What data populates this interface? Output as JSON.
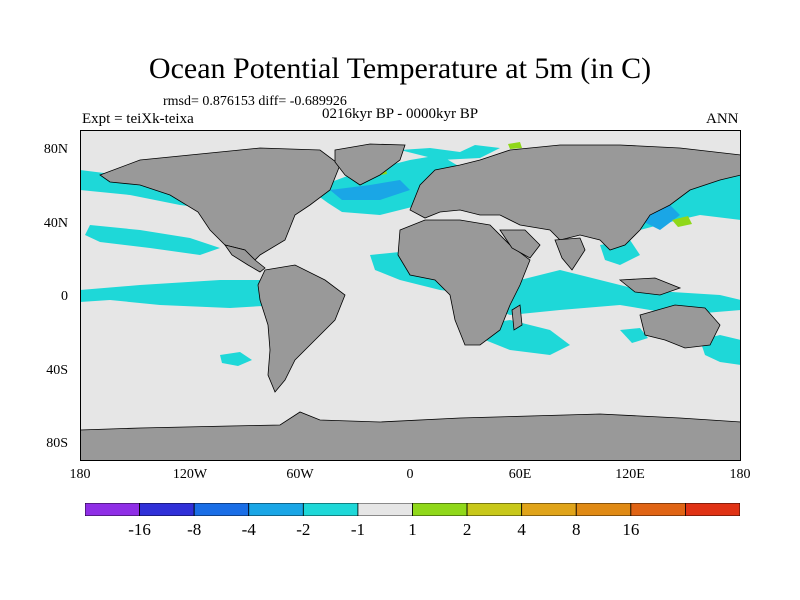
{
  "figure": {
    "title": "Ocean Potential Temperature at 5m (in C)",
    "stats": "rmsd= 0.876153 diff= -0.689926",
    "experiment": "Expt = teiXk-teixa",
    "period": "0216kyr BP - 0000kyr BP",
    "season": "ANN"
  },
  "map": {
    "projection": "cylindrical equidistant",
    "lon_range": [
      -180,
      180
    ],
    "lat_range": [
      -90,
      90
    ],
    "land_color": "#999999",
    "neutral_ocean_color": "#e6e6e6",
    "y_ticks": [
      "80N",
      "40N",
      "0",
      "40S",
      "80S"
    ],
    "x_ticks": [
      "180",
      "120W",
      "60W",
      "0",
      "60E",
      "120E",
      "180"
    ]
  },
  "colorbar": {
    "colors": [
      "#8f2ee6",
      "#3030d8",
      "#1a6ee6",
      "#1aa6e6",
      "#1ed8d8",
      "#e6e6e6",
      "#90d81a",
      "#c8c81a",
      "#e0a41a",
      "#e08a14",
      "#e06414",
      "#e03214"
    ],
    "labels": [
      "-16",
      "-8",
      "-4",
      "-2",
      "-1",
      "1",
      "2",
      "4",
      "8",
      "16"
    ]
  }
}
